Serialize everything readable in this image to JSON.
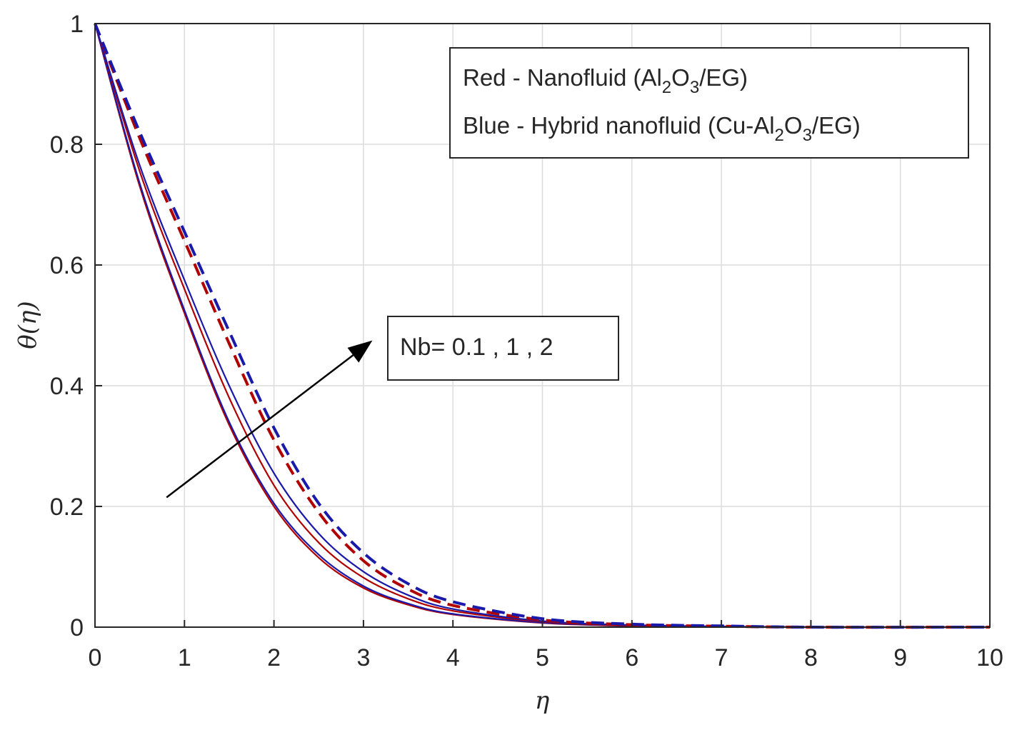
{
  "chart_data": {
    "type": "line",
    "xlabel": "η",
    "ylabel": "θ(η)",
    "xlim": [
      0,
      10
    ],
    "ylim": [
      0,
      1
    ],
    "xticks": [
      0,
      1,
      2,
      3,
      4,
      5,
      6,
      7,
      8,
      9,
      10
    ],
    "yticks": [
      0,
      0.2,
      0.4,
      0.6,
      0.8,
      1
    ],
    "grid": true,
    "legend": {
      "placement": "top-right",
      "entries": [
        {
          "pre": "Red - Nanofluid (Al",
          "sub1": "2",
          "mid": "O",
          "sub2": "3",
          "post": "/EG)"
        },
        {
          "pre": "Blue - Hybrid nanofluid (Cu-Al",
          "sub1": "2",
          "mid": "O",
          "sub2": "3",
          "post": "/EG)"
        }
      ]
    },
    "annotation": {
      "text": "Nb= 0.1 , 1 , 2",
      "arrow_from": [
        0.8,
        0.215
      ],
      "arrow_to": [
        3.1,
        0.475
      ]
    },
    "series": [
      {
        "color": "#b00000",
        "dash": "solid",
        "x": [
          0,
          0.5,
          1,
          1.5,
          2,
          2.5,
          3,
          3.5,
          4,
          5,
          6,
          7,
          8,
          10
        ],
        "y": [
          1,
          0.73,
          0.52,
          0.335,
          0.2,
          0.115,
          0.065,
          0.037,
          0.021,
          0.007,
          0.002,
          0.0005,
          0,
          0
        ]
      },
      {
        "color": "#1a1aaa",
        "dash": "solid",
        "x": [
          0,
          0.5,
          1,
          1.5,
          2,
          2.5,
          3,
          3.5,
          4,
          5,
          6,
          7,
          8,
          10
        ],
        "y": [
          1,
          0.735,
          0.525,
          0.34,
          0.205,
          0.12,
          0.068,
          0.039,
          0.022,
          0.0075,
          0.0025,
          0.0006,
          0,
          0
        ]
      },
      {
        "color": "#b00000",
        "dash": "solid",
        "x": [
          0,
          0.5,
          1,
          1.5,
          2,
          2.5,
          3,
          3.5,
          4,
          5,
          6,
          7,
          8,
          10
        ],
        "y": [
          1,
          0.755,
          0.56,
          0.38,
          0.235,
          0.14,
          0.082,
          0.047,
          0.027,
          0.009,
          0.003,
          0.001,
          0,
          0
        ]
      },
      {
        "color": "#1a1aaa",
        "dash": "solid",
        "x": [
          0,
          0.5,
          1,
          1.5,
          2,
          2.5,
          3,
          3.5,
          4,
          5,
          6,
          7,
          8,
          10
        ],
        "y": [
          1,
          0.765,
          0.575,
          0.4,
          0.255,
          0.155,
          0.092,
          0.053,
          0.03,
          0.01,
          0.0035,
          0.0012,
          0,
          0
        ]
      },
      {
        "color": "#b00000",
        "dash": "dashed",
        "x": [
          0,
          0.5,
          1,
          1.5,
          2,
          2.5,
          3,
          3.5,
          4,
          5,
          6,
          7,
          8,
          10
        ],
        "y": [
          1,
          0.81,
          0.64,
          0.47,
          0.31,
          0.19,
          0.11,
          0.063,
          0.036,
          0.012,
          0.004,
          0.0015,
          0,
          0
        ]
      },
      {
        "color": "#1a1aaa",
        "dash": "dashed",
        "x": [
          0,
          0.5,
          1,
          1.5,
          2,
          2.5,
          3,
          3.5,
          4,
          5,
          6,
          7,
          8,
          10
        ],
        "y": [
          1,
          0.82,
          0.655,
          0.49,
          0.33,
          0.205,
          0.123,
          0.072,
          0.042,
          0.014,
          0.005,
          0.002,
          0,
          0
        ]
      }
    ]
  }
}
